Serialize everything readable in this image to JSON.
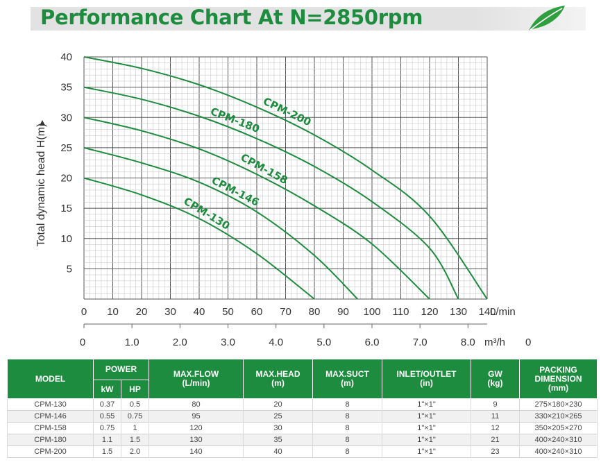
{
  "header": {
    "title": "Performance Chart At N=2850rpm"
  },
  "chart_data": {
    "type": "line",
    "ylabel": "Total dynamic head H(m)",
    "x_unit_lmin": "L/min",
    "x_unit_m3h": "m³/h",
    "xlim": [
      0,
      140
    ],
    "ylim": [
      0,
      40
    ],
    "x_ticks": [
      "0",
      "10",
      "20",
      "30",
      "40",
      "50",
      "60",
      "70",
      "80",
      "90",
      "100",
      "110",
      "120",
      "130",
      "140"
    ],
    "y_ticks": [
      "5",
      "10",
      "15",
      "20",
      "25",
      "30",
      "35",
      "40"
    ],
    "m3h_ticks": [
      "0",
      "1.0",
      "2.0",
      "3.0",
      "4.0",
      "5.0",
      "6.0",
      "7.0",
      "8.0"
    ],
    "m3h_trailing": "0",
    "series": [
      {
        "name": "CPM-130",
        "x": [
          0,
          20,
          40,
          60,
          80
        ],
        "y": [
          20,
          17.2,
          13.3,
          7.5,
          0
        ]
      },
      {
        "name": "CPM-146",
        "x": [
          0,
          20,
          40,
          60,
          80,
          95
        ],
        "y": [
          25,
          22.5,
          19.3,
          14.4,
          7.2,
          0
        ]
      },
      {
        "name": "CPM-158",
        "x": [
          0,
          20,
          40,
          60,
          80,
          100,
          120
        ],
        "y": [
          30,
          27.8,
          24.8,
          20.6,
          15.4,
          9.1,
          0
        ]
      },
      {
        "name": "CPM-180",
        "x": [
          0,
          20,
          40,
          60,
          80,
          100,
          120,
          130
        ],
        "y": [
          35,
          33,
          30.2,
          26.5,
          21.9,
          16.1,
          8.4,
          0
        ]
      },
      {
        "name": "CPM-200",
        "x": [
          0,
          20,
          40,
          60,
          80,
          100,
          120,
          140
        ],
        "y": [
          40,
          38.1,
          35.4,
          31.7,
          27.1,
          21.3,
          13.7,
          0
        ]
      }
    ],
    "grid": true,
    "colors": {
      "curve": "#1e8c3e",
      "grid": "#7a7a7a",
      "label": "#1e8c3e"
    }
  },
  "table": {
    "headers": {
      "model": "MODEL",
      "power": "POWER",
      "kw": "kW",
      "hp": "HP",
      "max_flow": [
        "MAX.FLOW",
        "(L/min)"
      ],
      "max_head": [
        "MAX.HEAD",
        "(m)"
      ],
      "max_suct": [
        "MAX.SUCT",
        "(m)"
      ],
      "inlet_outlet": [
        "INLET/OUTLET",
        "(in)"
      ],
      "gw": [
        "GW",
        "(kg)"
      ],
      "packing": [
        "PACKING",
        "DIMENSION",
        "(mm)"
      ]
    },
    "rows": [
      [
        "CPM-130",
        "0.37",
        "0.5",
        "80",
        "20",
        "8",
        "1\"×1\"",
        "9",
        "275×180×230"
      ],
      [
        "CPM-146",
        "0.55",
        "0.75",
        "95",
        "25",
        "8",
        "1\"×1\"",
        "11",
        "330×210×265"
      ],
      [
        "CPM-158",
        "0.75",
        "1",
        "120",
        "30",
        "8",
        "1\"×1\"",
        "12",
        "350×205×270"
      ],
      [
        "CPM-180",
        "1.1",
        "1.5",
        "130",
        "35",
        "8",
        "1\"×1\"",
        "21",
        "400×240×310"
      ],
      [
        "CPM-200",
        "1.5",
        "2.0",
        "140",
        "40",
        "8",
        "1\"×1\"",
        "23",
        "400×240×310"
      ]
    ]
  }
}
